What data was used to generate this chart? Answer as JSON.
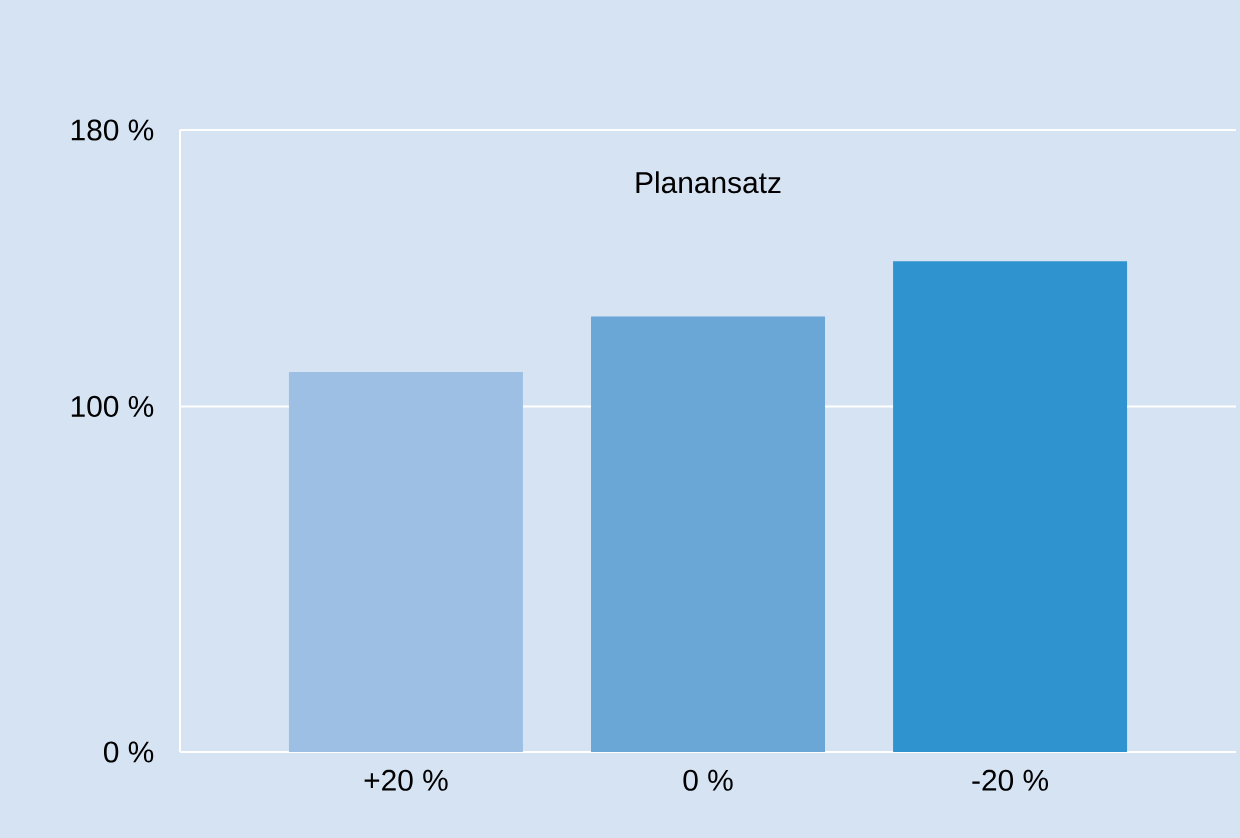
{
  "chart_data": {
    "type": "bar",
    "title": "Planansatz",
    "categories": [
      "+20 %",
      "0 %",
      "-20 %"
    ],
    "values": [
      110,
      126,
      142
    ],
    "colors": [
      "#9dbfe3",
      "#6aa6d6",
      "#2e93cf"
    ],
    "ylim": [
      0,
      180
    ],
    "yticks": [
      {
        "value": 0,
        "label": "0 %"
      },
      {
        "value": 100,
        "label": "100 %"
      },
      {
        "value": 180,
        "label": "180 %"
      }
    ],
    "grid": "y"
  }
}
